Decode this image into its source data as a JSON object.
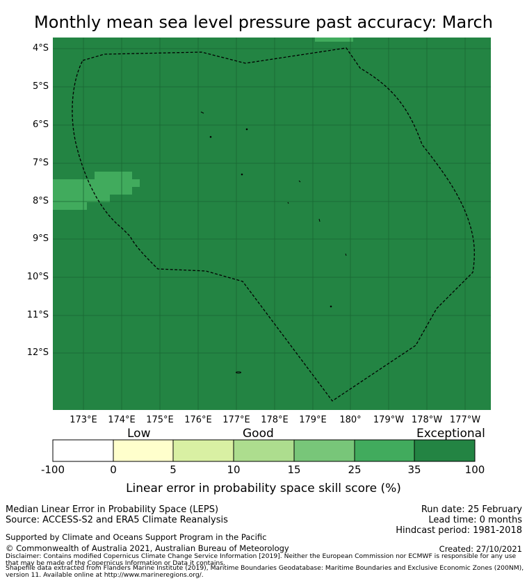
{
  "title": "Monthly mean sea level pressure past accuracy: March",
  "map": {
    "lat_labels": [
      "4°S",
      "5°S",
      "6°S",
      "7°S",
      "8°S",
      "9°S",
      "10°S",
      "11°S",
      "12°S"
    ],
    "lon_labels": [
      "173°E",
      "174°E",
      "175°E",
      "176°E",
      "177°E",
      "178°E",
      "179°E",
      "180°",
      "179°W",
      "178°W",
      "177°W"
    ],
    "colors": {
      "exceptional": "#238443",
      "good_high": "#41ab5d",
      "good_mid": "#78c679"
    }
  },
  "colorbar": {
    "categories": [
      "Low",
      "Good",
      "Exceptional"
    ],
    "ticks": [
      "-100",
      "0",
      "5",
      "10",
      "15",
      "25",
      "35",
      "100"
    ],
    "colors": [
      "#ffffff",
      "#ffffcc",
      "#d9f0a3",
      "#addd8e",
      "#78c679",
      "#41ab5d",
      "#238443"
    ],
    "xlabel": "Linear error in probability space skill score (%)"
  },
  "footer": {
    "method": "Median Linear Error in Probability Space (LEPS)",
    "source": "Source: ACCESS-S2 and ERA5 Climate Reanalysis",
    "run_date": "Run date: 25 February",
    "lead_time": "Lead time: 0 months",
    "hindcast": "Hindcast period: 1981-2018",
    "support": "Supported by Climate and Oceans Support Program in the Pacific",
    "copyright": "© Commonwealth of Australia 2021, Australian Bureau of Meteorology",
    "created": "Created: 27/10/2021",
    "disclaimer": "Disclaimer: Contains modified Copernicus Climate Change Service Information [2019]. Neither the European Commission nor ECMWF is responsible for any use that may be made of the Copernicus Information or Data it contains.",
    "shapefile": "Shapefile data extracted from Flanders Marine Institute (2019), Maritime Boundaries Geodatabase: Maritime Boundaries and Exclusive Economic Zones (200NM), version 11. Available online at http://www.marineregions.org/."
  }
}
